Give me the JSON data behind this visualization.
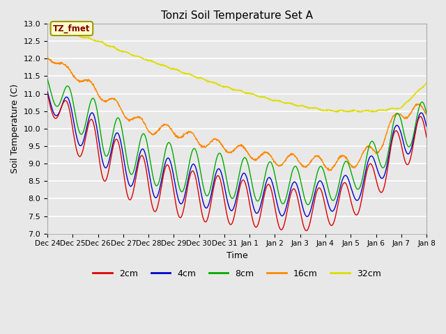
{
  "title": "Tonzi Soil Temperature Set A",
  "xlabel": "Time",
  "ylabel": "Soil Temperature (C)",
  "ylim": [
    7.0,
    13.0
  ],
  "yticks": [
    7.0,
    7.5,
    8.0,
    8.5,
    9.0,
    9.5,
    10.0,
    10.5,
    11.0,
    11.5,
    12.0,
    12.5,
    13.0
  ],
  "xtick_labels": [
    "Dec 24",
    "Dec 25",
    "Dec 26",
    "Dec 27",
    "Dec 28",
    "Dec 29",
    "Dec 30",
    "Dec 31",
    "Jan 1",
    "Jan 2",
    "Jan 3",
    "Jan 4",
    "Jan 5",
    "Jan 6",
    "Jan 7",
    "Jan 8"
  ],
  "colors": {
    "2cm": "#dd0000",
    "4cm": "#0000cc",
    "8cm": "#00aa00",
    "16cm": "#ff8800",
    "32cm": "#dddd00"
  },
  "legend_label": "TZ_fmet",
  "legend_bg": "#ffffcc",
  "legend_border": "#999900",
  "bg_color": "#e8e8e8",
  "plot_bg": "#e8e8e8",
  "grid_color": "#ffffff",
  "linewidth": 1.0,
  "n_points": 1440
}
